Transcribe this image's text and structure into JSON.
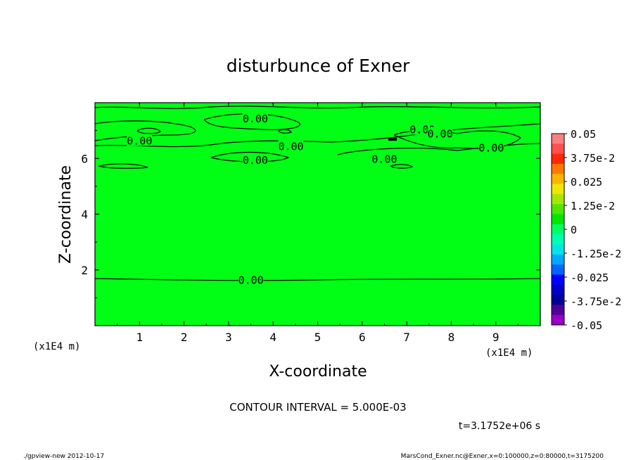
{
  "chart_data": {
    "type": "contour",
    "title": "disturbunce of Exner",
    "xlabel": "X-coordinate",
    "ylabel": "Z-coordinate",
    "x_unit": "(x1E4 m)",
    "z_unit": "(x1E4 m)",
    "xlim": [
      0,
      10
    ],
    "ylim": [
      0,
      8
    ],
    "x_ticks": [
      1,
      2,
      3,
      4,
      5,
      6,
      7,
      8,
      9
    ],
    "y_ticks": [
      2,
      4,
      6
    ],
    "field_value": 0,
    "contour_labels": [
      {
        "text": "0.00",
        "x": 3.6,
        "z": 7.45
      },
      {
        "text": "0.00",
        "x": 1.0,
        "z": 6.65
      },
      {
        "text": "0.00",
        "x": 4.4,
        "z": 6.45
      },
      {
        "text": "0.00",
        "x": 3.6,
        "z": 5.95
      },
      {
        "text": "0.00",
        "x": 6.5,
        "z": 6.0
      },
      {
        "text": "0.00",
        "x": 7.35,
        "z": 7.05
      },
      {
        "text": "0.00",
        "x": 7.75,
        "z": 6.9
      },
      {
        "text": "0.00",
        "x": 8.9,
        "z": 6.4
      },
      {
        "text": "0.00",
        "x": 3.5,
        "z": 1.65
      }
    ],
    "colorbar": {
      "labels": [
        "0.05",
        "3.75e-2",
        "0.025",
        "1.25e-2",
        "0",
        "-1.25e-2",
        "-0.025",
        "-3.75e-2",
        "-0.05"
      ],
      "colors": [
        "#ff8080",
        "#ff5050",
        "#ff2800",
        "#ff7800",
        "#ffb400",
        "#f0e600",
        "#a8e600",
        "#50e600",
        "#00e600",
        "#00ff64",
        "#00ffb0",
        "#00e6e6",
        "#00a8ff",
        "#0064ff",
        "#0000ff",
        "#0000c8",
        "#000096",
        "#500096",
        "#9600c8"
      ],
      "colors_note": "top to bottom"
    },
    "fill_color": "#00ff14",
    "contour_interval": "CONTOUR INTERVAL = 5.000E-03",
    "time_label": "t=3.1752e+06 s"
  },
  "footer": {
    "left": "./gpview-new  2012-10-17",
    "right": "MarsCond_Exner.nc@Exner,x=0:100000,z=0:80000,t=3175200"
  }
}
